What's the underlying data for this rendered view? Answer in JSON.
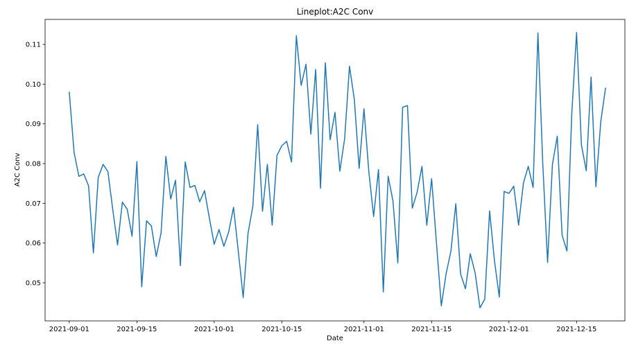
{
  "chart_data": {
    "type": "line",
    "title": "Lineplot:A2C Conv",
    "xlabel": "Date",
    "ylabel": "A2C Conv",
    "x_start": "2021-09-01",
    "x_end": "2021-12-21",
    "xlim": [
      "2021-08-27",
      "2021-12-25"
    ],
    "ylim": [
      0.0404,
      0.1163
    ],
    "x_ticks": [
      "2021-09-01",
      "2021-09-15",
      "2021-10-01",
      "2021-10-15",
      "2021-11-01",
      "2021-11-15",
      "2021-12-01",
      "2021-12-15"
    ],
    "y_ticks": [
      0.05,
      0.06,
      0.07,
      0.08,
      0.09,
      0.1,
      0.11
    ],
    "y_tick_labels": [
      "0.05",
      "0.06",
      "0.07",
      "0.08",
      "0.09",
      "0.10",
      "0.11"
    ],
    "grid": false,
    "line_color": "#1f77b4",
    "series": [
      {
        "values": [
          0.0981,
          0.0828,
          0.0768,
          0.0774,
          0.0744,
          0.0575,
          0.0765,
          0.0798,
          0.078,
          0.0685,
          0.0595,
          0.0703,
          0.0685,
          0.0617,
          0.0805,
          0.049,
          0.0656,
          0.0643,
          0.0566,
          0.0625,
          0.0818,
          0.0711,
          0.0758,
          0.0543,
          0.0804,
          0.074,
          0.0745,
          0.0704,
          0.0732,
          0.0663,
          0.0597,
          0.0634,
          0.0592,
          0.0628,
          0.069,
          0.0578,
          0.0463,
          0.0624,
          0.0693,
          0.0898,
          0.068,
          0.0798,
          0.0645,
          0.0821,
          0.0845,
          0.0856,
          0.0804,
          0.1122,
          0.0997,
          0.105,
          0.0874,
          0.1037,
          0.0738,
          0.1054,
          0.086,
          0.0929,
          0.0781,
          0.0863,
          0.1045,
          0.0962,
          0.0788,
          0.0938,
          0.078,
          0.0667,
          0.0785,
          0.0477,
          0.0768,
          0.0706,
          0.055,
          0.0942,
          0.0946,
          0.0688,
          0.0728,
          0.0793,
          0.0645,
          0.0762,
          0.06,
          0.0442,
          0.0523,
          0.058,
          0.0699,
          0.0522,
          0.0485,
          0.0573,
          0.0525,
          0.0437,
          0.0459,
          0.0681,
          0.0556,
          0.0464,
          0.073,
          0.0725,
          0.0743,
          0.0645,
          0.0751,
          0.0793,
          0.074,
          0.1129,
          0.08,
          0.0551,
          0.0798,
          0.0869,
          0.062,
          0.058,
          0.0925,
          0.113,
          0.0847,
          0.0782,
          0.1018,
          0.0742,
          0.0905,
          0.0991
        ]
      }
    ]
  }
}
